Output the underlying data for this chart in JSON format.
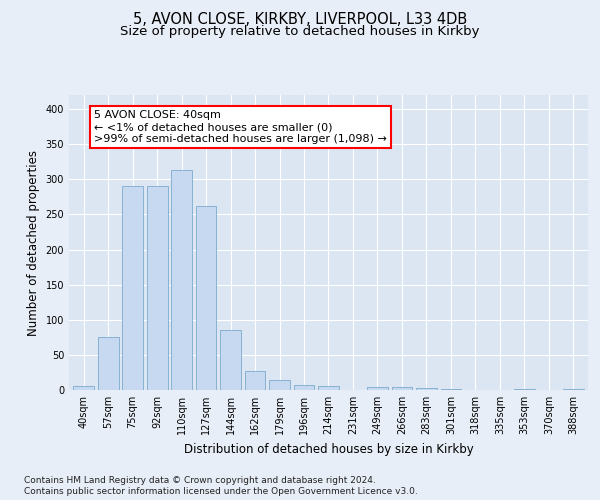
{
  "title1": "5, AVON CLOSE, KIRKBY, LIVERPOOL, L33 4DB",
  "title2": "Size of property relative to detached houses in Kirkby",
  "xlabel": "Distribution of detached houses by size in Kirkby",
  "ylabel": "Number of detached properties",
  "categories": [
    "40sqm",
    "57sqm",
    "75sqm",
    "92sqm",
    "110sqm",
    "127sqm",
    "144sqm",
    "162sqm",
    "179sqm",
    "196sqm",
    "214sqm",
    "231sqm",
    "249sqm",
    "266sqm",
    "283sqm",
    "301sqm",
    "318sqm",
    "335sqm",
    "353sqm",
    "370sqm",
    "388sqm"
  ],
  "values": [
    5,
    75,
    291,
    291,
    313,
    262,
    85,
    27,
    14,
    7,
    5,
    0,
    4,
    4,
    3,
    2,
    0,
    0,
    2,
    0,
    2
  ],
  "bar_color": "#c6d9f0",
  "bar_edge_color": "#7aabce",
  "annotation_line1": "5 AVON CLOSE: 40sqm",
  "annotation_line2": "← <1% of detached houses are smaller (0)",
  "annotation_line3": ">99% of semi-detached houses are larger (1,098) →",
  "footer1": "Contains HM Land Registry data © Crown copyright and database right 2024.",
  "footer2": "Contains public sector information licensed under the Open Government Licence v3.0.",
  "ylim": [
    0,
    420
  ],
  "yticks": [
    0,
    50,
    100,
    150,
    200,
    250,
    300,
    350,
    400
  ],
  "bg_color": "#e8eef7",
  "plot_bg_color": "#dce6f3",
  "grid_color": "#ffffff",
  "title1_fontsize": 10.5,
  "title2_fontsize": 9.5,
  "axis_label_fontsize": 8.5,
  "tick_fontsize": 7,
  "annotation_fontsize": 8,
  "footer_fontsize": 6.5
}
